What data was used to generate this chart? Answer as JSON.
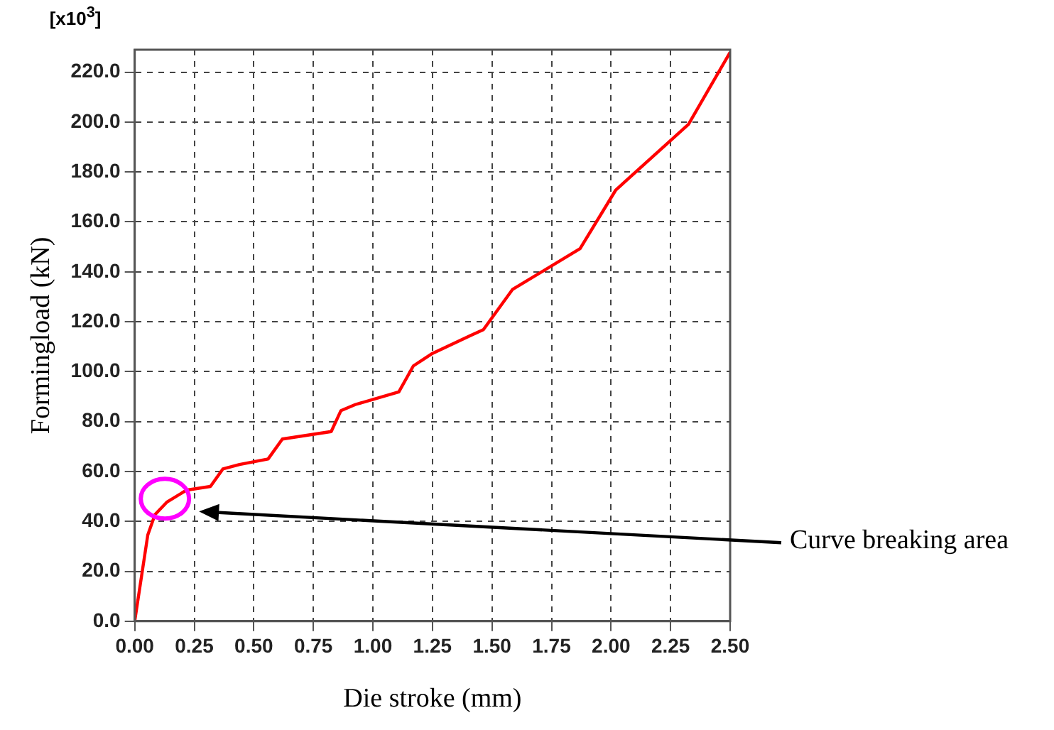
{
  "chart_data": {
    "type": "line",
    "xlabel": "Die stroke (mm)",
    "ylabel": "Formingload (kN)",
    "annotations": [
      "[x10$^{3}$]",
      "Curve breaking area"
    ],
    "x": [
      0,
      0.055,
      0.085,
      0.136,
      0.217,
      0.318,
      0.37,
      0.44,
      0.56,
      0.62,
      0.825,
      0.866,
      0.926,
      1.109,
      1.17,
      1.25,
      1.41,
      1.464,
      1.586,
      1.87,
      2.02,
      2.325,
      2.5
    ],
    "series": [
      {
        "color": "#ff0000",
        "values": [
          0,
          34.6,
          42.7,
          47.8,
          52.5,
          54,
          61,
          62.8,
          65,
          73,
          76,
          84.4,
          86.8,
          91.9,
          102.3,
          107.3,
          114.5,
          116.8,
          132.9,
          149.3,
          172.8,
          199.1,
          228
        ]
      }
    ],
    "xlim": [
      0,
      2.5
    ],
    "ylim": [
      0,
      229
    ],
    "xticks": [
      {
        "value": 0,
        "label": "0.00"
      },
      {
        "value": 0.25,
        "label": "0.25"
      },
      {
        "value": 0.5,
        "label": "0.50"
      },
      {
        "value": 0.75,
        "label": "0.75"
      },
      {
        "value": 1,
        "label": "1.00"
      },
      {
        "value": 1.25,
        "label": "1.25"
      },
      {
        "value": 1.5,
        "label": "1.50"
      },
      {
        "value": 1.75,
        "label": "1.75"
      },
      {
        "value": 2,
        "label": "2.00"
      },
      {
        "value": 2.25,
        "label": "2.25"
      },
      {
        "value": 2.5,
        "label": "2.50"
      }
    ],
    "yticks": [
      {
        "value": 0,
        "label": "0.0"
      },
      {
        "value": 20,
        "label": "20.0"
      },
      {
        "value": 40,
        "label": "40.0"
      },
      {
        "value": 60,
        "label": "60.0"
      },
      {
        "value": 80,
        "label": "80.0"
      },
      {
        "value": 100,
        "label": "100.0"
      },
      {
        "value": 120,
        "label": "120.0"
      },
      {
        "value": 140,
        "label": "140.0"
      },
      {
        "value": 160,
        "label": "160.0"
      },
      {
        "value": 180,
        "label": "180.0"
      },
      {
        "value": 200,
        "label": "200.0"
      },
      {
        "value": 220,
        "label": "220.0"
      }
    ],
    "grid": true,
    "legend": false,
    "marker": "none",
    "line_style": "solid"
  }
}
